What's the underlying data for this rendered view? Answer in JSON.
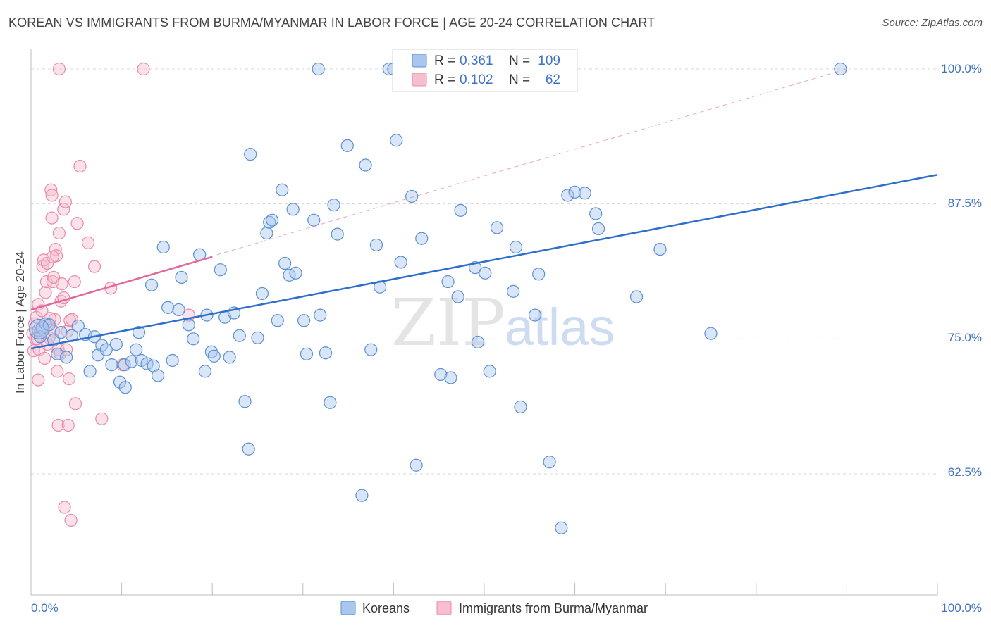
{
  "title": "KOREAN VS IMMIGRANTS FROM BURMA/MYANMAR IN LABOR FORCE | AGE 20-24 CORRELATION CHART",
  "source": "Source: ZipAtlas.com",
  "watermark": {
    "part1": "ZIP",
    "part2": "atlas"
  },
  "colors": {
    "blue_fill": "#a9c7ee",
    "blue_stroke": "#5b8fd6",
    "blue_line": "#2f6fcc",
    "pink_fill": "#f6bfd0",
    "pink_stroke": "#e88aa8",
    "pink_line": "#e0699a",
    "grid": "#d8d8d8",
    "tick_text": "#3f72c4"
  },
  "legend": {
    "rows": [
      {
        "r_label": "R = ",
        "r_value": "0.361",
        "n_label": "N = ",
        "n_value": "109"
      },
      {
        "r_label": "R = ",
        "r_value": "0.102",
        "n_label": "N = ",
        "n_value": "62"
      }
    ]
  },
  "bottom_legend": [
    "Koreans",
    "Immigrants from Burma/Myanmar"
  ],
  "chart_data": {
    "type": "scatter",
    "title": "KOREAN VS IMMIGRANTS FROM BURMA/MYANMAR IN LABOR FORCE | AGE 20-24 CORRELATION CHART",
    "xlabel": "",
    "ylabel": "In Labor Force | Age 20-24",
    "xlim": [
      0,
      100
    ],
    "ylim": [
      50.5,
      102
    ],
    "x_tick_labels": [
      "0.0%",
      "100.0%"
    ],
    "y_ticks": [
      62.5,
      75.0,
      87.5,
      100.0
    ],
    "y_tick_labels": [
      "62.5%",
      "75.0%",
      "87.5%",
      "100.0%"
    ],
    "grid": true,
    "series": [
      {
        "name": "Koreans",
        "R": 0.361,
        "N": 109,
        "trend": {
          "x": [
            0,
            100
          ],
          "y": [
            74.1,
            90.2
          ]
        },
        "points": [
          [
            0.8,
            75.8
          ],
          [
            1.0,
            75.2
          ],
          [
            1.2,
            76.0
          ],
          [
            1.6,
            76.4
          ],
          [
            2.0,
            76.3
          ],
          [
            2.5,
            74.9
          ],
          [
            2.9,
            73.6
          ],
          [
            3.3,
            75.6
          ],
          [
            3.9,
            73.3
          ],
          [
            4.5,
            75.3
          ],
          [
            5.2,
            76.2
          ],
          [
            6.0,
            75.4
          ],
          [
            6.5,
            72.0
          ],
          [
            7.0,
            75.2
          ],
          [
            7.4,
            73.5
          ],
          [
            7.8,
            74.4
          ],
          [
            8.3,
            74.0
          ],
          [
            8.9,
            72.6
          ],
          [
            9.4,
            74.5
          ],
          [
            9.8,
            71.0
          ],
          [
            10.4,
            70.5
          ],
          [
            10.3,
            72.6
          ],
          [
            11.1,
            72.9
          ],
          [
            11.6,
            74.0
          ],
          [
            11.9,
            75.6
          ],
          [
            12.2,
            73.0
          ],
          [
            12.8,
            72.7
          ],
          [
            13.5,
            72.5
          ],
          [
            13.3,
            80.0
          ],
          [
            14.0,
            71.6
          ],
          [
            14.6,
            83.5
          ],
          [
            15.1,
            77.9
          ],
          [
            15.6,
            73.0
          ],
          [
            16.3,
            77.7
          ],
          [
            16.6,
            80.7
          ],
          [
            17.4,
            76.3
          ],
          [
            17.9,
            75.0
          ],
          [
            18.6,
            82.8
          ],
          [
            19.2,
            72.0
          ],
          [
            19.4,
            77.2
          ],
          [
            19.9,
            73.8
          ],
          [
            20.2,
            73.4
          ],
          [
            20.9,
            81.4
          ],
          [
            21.4,
            77.0
          ],
          [
            21.9,
            73.3
          ],
          [
            22.4,
            77.4
          ],
          [
            23.0,
            75.3
          ],
          [
            23.6,
            69.2
          ],
          [
            24.0,
            64.8
          ],
          [
            24.2,
            92.1
          ],
          [
            25.0,
            75.1
          ],
          [
            25.5,
            79.2
          ],
          [
            26.0,
            84.8
          ],
          [
            26.3,
            85.8
          ],
          [
            26.6,
            86.0
          ],
          [
            27.2,
            76.7
          ],
          [
            27.7,
            88.8
          ],
          [
            28.0,
            82.0
          ],
          [
            28.5,
            80.9
          ],
          [
            28.9,
            87.0
          ],
          [
            29.2,
            81.1
          ],
          [
            30.1,
            76.7
          ],
          [
            30.4,
            73.6
          ],
          [
            31.2,
            86.0
          ],
          [
            31.9,
            77.2
          ],
          [
            31.7,
            100.0
          ],
          [
            32.5,
            73.7
          ],
          [
            33.0,
            69.1
          ],
          [
            33.4,
            87.4
          ],
          [
            33.8,
            84.7
          ],
          [
            34.9,
            92.9
          ],
          [
            36.5,
            60.5
          ],
          [
            36.9,
            91.1
          ],
          [
            37.5,
            74.0
          ],
          [
            38.1,
            83.7
          ],
          [
            38.5,
            79.8
          ],
          [
            39.5,
            100.0
          ],
          [
            40.0,
            100.0
          ],
          [
            40.3,
            93.4
          ],
          [
            40.8,
            82.1
          ],
          [
            42.0,
            88.2
          ],
          [
            42.5,
            63.3
          ],
          [
            43.1,
            84.3
          ],
          [
            45.2,
            71.7
          ],
          [
            46.0,
            80.3
          ],
          [
            46.3,
            71.4
          ],
          [
            47.1,
            78.9
          ],
          [
            47.4,
            86.9
          ],
          [
            49.0,
            81.6
          ],
          [
            49.3,
            74.7
          ],
          [
            50.1,
            81.1
          ],
          [
            50.6,
            72.0
          ],
          [
            51.4,
            85.3
          ],
          [
            53.2,
            79.4
          ],
          [
            53.5,
            83.5
          ],
          [
            54.0,
            68.7
          ],
          [
            55.6,
            77.2
          ],
          [
            56.0,
            81.0
          ],
          [
            57.2,
            63.6
          ],
          [
            58.5,
            57.5
          ],
          [
            59.2,
            88.3
          ],
          [
            60.0,
            88.6
          ],
          [
            61.1,
            88.5
          ],
          [
            62.3,
            86.6
          ],
          [
            62.6,
            85.2
          ],
          [
            66.8,
            78.9
          ],
          [
            69.4,
            83.3
          ],
          [
            89.3,
            100.0
          ],
          [
            75.0,
            75.5
          ]
        ]
      },
      {
        "name": "Immigrants from Burma/Myanmar",
        "R": 0.102,
        "N": 62,
        "trend": {
          "x": [
            0,
            20
          ],
          "y": [
            77.7,
            82.6
          ]
        },
        "trend_extended": {
          "x": [
            0,
            90
          ],
          "y": [
            77.7,
            100.0
          ]
        },
        "points": [
          [
            0.2,
            75.5
          ],
          [
            0.3,
            73.9
          ],
          [
            0.4,
            76.4
          ],
          [
            0.5,
            75.0
          ],
          [
            0.6,
            77.0
          ],
          [
            0.8,
            78.2
          ],
          [
            0.8,
            71.2
          ],
          [
            0.9,
            74.0
          ],
          [
            1.0,
            75.6
          ],
          [
            1.1,
            75.8
          ],
          [
            1.2,
            77.6
          ],
          [
            1.3,
            81.7
          ],
          [
            1.4,
            82.3
          ],
          [
            1.5,
            73.2
          ],
          [
            1.6,
            79.3
          ],
          [
            1.7,
            80.3
          ],
          [
            1.8,
            82.0
          ],
          [
            1.9,
            76.4
          ],
          [
            2.0,
            75.1
          ],
          [
            2.2,
            88.8
          ],
          [
            2.3,
            88.3
          ],
          [
            2.3,
            86.2
          ],
          [
            2.4,
            80.3
          ],
          [
            2.5,
            80.7
          ],
          [
            2.6,
            76.8
          ],
          [
            2.7,
            83.3
          ],
          [
            2.8,
            82.7
          ],
          [
            2.9,
            72.0
          ],
          [
            3.0,
            74.0
          ],
          [
            3.1,
            84.8
          ],
          [
            3.2,
            73.6
          ],
          [
            3.3,
            78.5
          ],
          [
            3.4,
            80.1
          ],
          [
            3.6,
            87.0
          ],
          [
            3.8,
            87.7
          ],
          [
            4.0,
            75.7
          ],
          [
            4.2,
            71.3
          ],
          [
            4.3,
            76.7
          ],
          [
            4.5,
            76.8
          ],
          [
            4.8,
            80.3
          ],
          [
            5.1,
            85.7
          ],
          [
            5.4,
            91.0
          ],
          [
            6.3,
            83.9
          ],
          [
            7.0,
            81.7
          ],
          [
            7.8,
            67.6
          ],
          [
            8.8,
            79.7
          ],
          [
            10.1,
            72.6
          ],
          [
            12.4,
            100.0
          ],
          [
            3.1,
            100.0
          ],
          [
            3.0,
            67.0
          ],
          [
            4.1,
            67.0
          ],
          [
            3.7,
            59.4
          ],
          [
            4.4,
            58.2
          ],
          [
            4.9,
            69.0
          ],
          [
            2.1,
            76.9
          ],
          [
            2.4,
            82.6
          ],
          [
            3.6,
            78.8
          ],
          [
            1.8,
            74.5
          ],
          [
            2.5,
            75.7
          ],
          [
            3.9,
            74.0
          ],
          [
            17.4,
            77.2
          ],
          [
            0.7,
            75.0
          ]
        ]
      }
    ]
  }
}
